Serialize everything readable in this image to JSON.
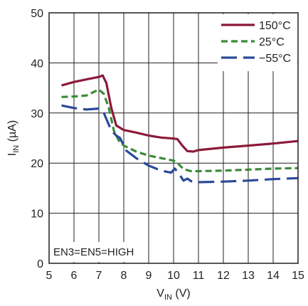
{
  "chart_data": {
    "type": "line",
    "xlabel": {
      "main": "V",
      "sub": "IN",
      "unit": " (V)"
    },
    "ylabel": {
      "main": "I",
      "sub": "IN",
      "unit": " (µA)"
    },
    "xlim": [
      5,
      15
    ],
    "ylim": [
      0,
      50
    ],
    "xticks": [
      5,
      6,
      7,
      8,
      9,
      10,
      11,
      12,
      13,
      14,
      15
    ],
    "yticks": [
      0,
      10,
      20,
      30,
      40,
      50
    ],
    "grid": true,
    "legend_position": "top-right",
    "annotation": "EN3=EN5=HIGH",
    "series": [
      {
        "name": "150°C",
        "color": "#8b1a3a",
        "dash": "solid",
        "points": [
          [
            5.5,
            35.5
          ],
          [
            6.0,
            36.2
          ],
          [
            6.5,
            36.7
          ],
          [
            7.0,
            37.2
          ],
          [
            7.15,
            37.5
          ],
          [
            7.3,
            36.0
          ],
          [
            7.5,
            31.0
          ],
          [
            7.7,
            27.5
          ],
          [
            8.0,
            26.6
          ],
          [
            8.5,
            26.1
          ],
          [
            9.0,
            25.5
          ],
          [
            9.5,
            25.1
          ],
          [
            10.0,
            24.9
          ],
          [
            10.15,
            24.8
          ],
          [
            10.35,
            23.5
          ],
          [
            10.55,
            22.4
          ],
          [
            10.8,
            22.3
          ],
          [
            11.0,
            22.6
          ],
          [
            12.0,
            23.1
          ],
          [
            13.0,
            23.5
          ],
          [
            14.0,
            23.9
          ],
          [
            15.0,
            24.4
          ]
        ]
      },
      {
        "name": "25°C",
        "color": "#3a8b3a",
        "dash": "dashed",
        "points": [
          [
            5.5,
            33.2
          ],
          [
            6.0,
            33.3
          ],
          [
            6.5,
            33.5
          ],
          [
            6.8,
            34.2
          ],
          [
            7.0,
            34.7
          ],
          [
            7.2,
            33.8
          ],
          [
            7.4,
            31.0
          ],
          [
            7.6,
            26.5
          ],
          [
            7.8,
            24.5
          ],
          [
            8.0,
            23.5
          ],
          [
            8.5,
            22.3
          ],
          [
            9.0,
            21.5
          ],
          [
            9.5,
            21.0
          ],
          [
            10.0,
            20.5
          ],
          [
            10.2,
            19.8
          ],
          [
            10.4,
            18.8
          ],
          [
            10.7,
            18.4
          ],
          [
            11.0,
            18.4
          ],
          [
            12.0,
            18.5
          ],
          [
            13.0,
            18.7
          ],
          [
            14.0,
            18.9
          ],
          [
            15.0,
            19.0
          ]
        ]
      },
      {
        "name": "−55°C",
        "color": "#2b4a99",
        "dash": "longdash",
        "points": [
          [
            5.5,
            31.5
          ],
          [
            6.0,
            31.0
          ],
          [
            6.5,
            30.7
          ],
          [
            7.0,
            30.9
          ],
          [
            7.2,
            30.0
          ],
          [
            7.5,
            26.5
          ],
          [
            7.7,
            25.5
          ],
          [
            7.85,
            25.0
          ],
          [
            8.1,
            22.5
          ],
          [
            8.5,
            21.0
          ],
          [
            9.0,
            19.5
          ],
          [
            9.5,
            18.5
          ],
          [
            9.9,
            18.1
          ],
          [
            10.05,
            18.9
          ],
          [
            10.2,
            18.0
          ],
          [
            10.4,
            16.5
          ],
          [
            10.55,
            16.9
          ],
          [
            10.7,
            16.4
          ],
          [
            11.0,
            16.2
          ],
          [
            12.0,
            16.3
          ],
          [
            13.0,
            16.5
          ],
          [
            14.0,
            16.8
          ],
          [
            15.0,
            17.0
          ]
        ]
      }
    ]
  }
}
